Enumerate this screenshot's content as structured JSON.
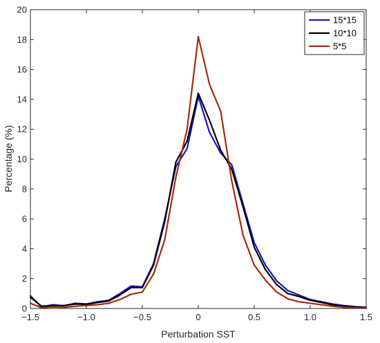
{
  "chart_data": {
    "type": "line",
    "title": "",
    "xlabel": "Perturbation SST",
    "ylabel": "Percentage (%)",
    "xlim": [
      -1.5,
      1.5
    ],
    "ylim": [
      0,
      20
    ],
    "x_ticks": [
      -1.5,
      -1.0,
      -0.5,
      0,
      0.5,
      1.0,
      1.5
    ],
    "x_tick_labels": [
      "−1.5",
      "−1.0",
      "−0.5",
      "0",
      "0.5",
      "1.0",
      "1.5"
    ],
    "y_ticks": [
      0,
      2,
      4,
      6,
      8,
      10,
      12,
      14,
      16,
      18,
      20
    ],
    "y_tick_labels": [
      "0",
      "2",
      "4",
      "6",
      "8",
      "10",
      "12",
      "14",
      "16",
      "18",
      "20"
    ],
    "grid": false,
    "legend_position": "top-right",
    "x": [
      -1.5,
      -1.4,
      -1.3,
      -1.2,
      -1.1,
      -1.0,
      -0.9,
      -0.8,
      -0.7,
      -0.6,
      -0.5,
      -0.4,
      -0.3,
      -0.2,
      -0.1,
      0.0,
      0.1,
      0.2,
      0.3,
      0.4,
      0.5,
      0.6,
      0.7,
      0.8,
      0.9,
      1.0,
      1.1,
      1.2,
      1.3,
      1.4,
      1.5
    ],
    "series": [
      {
        "name": "15*15",
        "color": "#1414c8",
        "values": [
          0.85,
          0.1,
          0.25,
          0.18,
          0.35,
          0.3,
          0.45,
          0.55,
          1.0,
          1.5,
          1.45,
          3.0,
          6.0,
          9.5,
          10.7,
          14.2,
          11.8,
          10.4,
          9.6,
          7.0,
          4.4,
          2.9,
          1.85,
          1.2,
          0.9,
          0.6,
          0.45,
          0.3,
          0.2,
          0.12,
          0.08
        ]
      },
      {
        "name": "10*10",
        "color": "#000000",
        "values": [
          0.75,
          0.15,
          0.2,
          0.2,
          0.3,
          0.28,
          0.4,
          0.5,
          0.9,
          1.4,
          1.4,
          2.9,
          5.8,
          9.8,
          11.2,
          14.4,
          12.6,
          10.6,
          9.3,
          6.8,
          4.1,
          2.6,
          1.6,
          1.0,
          0.8,
          0.55,
          0.4,
          0.25,
          0.15,
          0.1,
          0.06
        ]
      },
      {
        "name": "5*5",
        "color": "#a52a0a",
        "values": [
          0.35,
          0.05,
          0.1,
          0.08,
          0.15,
          0.2,
          0.25,
          0.35,
          0.6,
          0.95,
          1.1,
          2.3,
          4.6,
          8.8,
          12.0,
          18.2,
          15.0,
          13.2,
          8.5,
          4.9,
          2.9,
          1.9,
          1.1,
          0.65,
          0.45,
          0.35,
          0.25,
          0.15,
          0.08,
          0.05,
          0.03
        ]
      }
    ]
  }
}
